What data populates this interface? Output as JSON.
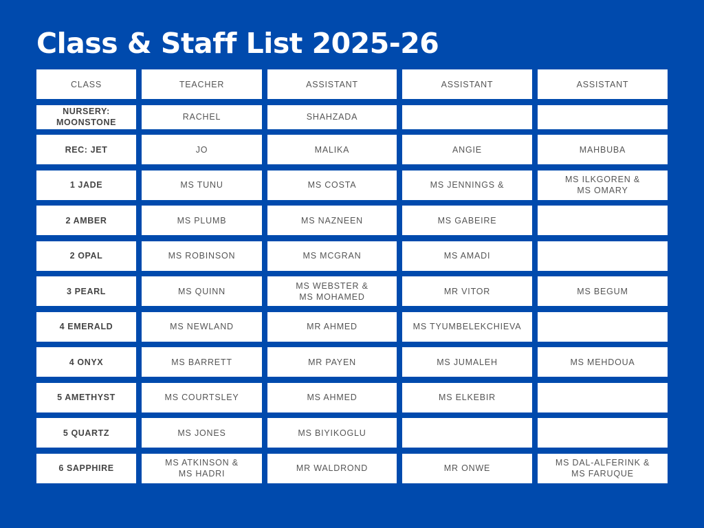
{
  "title": "Class & Staff List 2025-26",
  "headers": [
    "CLASS",
    "TEACHER",
    "ASSISTANT",
    "ASSISTANT",
    "ASSISTANT"
  ],
  "rows": [
    [
      "NURSERY:\nMOONSTONE",
      "RACHEL",
      "SHAHZADA",
      "",
      ""
    ],
    [
      "REC: JET",
      "JO",
      "MALIKA",
      "ANGIE",
      "MAHBUBA"
    ],
    [
      "1 JADE",
      "MS TUNU",
      "MS COSTA",
      "MS JENNINGS &",
      "MS ILKGOREN &\nMS OMARY"
    ],
    [
      "2 AMBER",
      "MS PLUMB",
      "MS NAZNEEN",
      "MS GABEIRE",
      ""
    ],
    [
      "2 OPAL",
      "MS ROBINSON",
      "MS MCGRAN",
      "MS AMADI",
      ""
    ],
    [
      "3 PEARL",
      "MS QUINN",
      "MS WEBSTER &\nMS MOHAMED",
      "MR VITOR",
      "MS BEGUM"
    ],
    [
      "4 EMERALD",
      "MS NEWLAND",
      "MR AHMED",
      "MS TYUMBELEKCHIEVA",
      ""
    ],
    [
      "4 ONYX",
      "MS BARRETT",
      "MR PAYEN",
      "MS JUMALEH",
      "MS MEHDOUA"
    ],
    [
      "5 AMETHYST",
      "MS COURTSLEY",
      "MS AHMED",
      "MS ELKEBIR",
      ""
    ],
    [
      "5 QUARTZ",
      "MS JONES",
      "MS BIYIKOGLU",
      "",
      ""
    ],
    [
      "6 SAPPHIRE",
      "MS ATKINSON &\nMS HADRI",
      "MR WALDROND",
      "MR ONWE",
      "MS DAL-ALFERINK &\nMS FARUQUE"
    ]
  ],
  "colors": {
    "background": "#004aad",
    "cell": "#ffffff",
    "text": "#555555"
  }
}
